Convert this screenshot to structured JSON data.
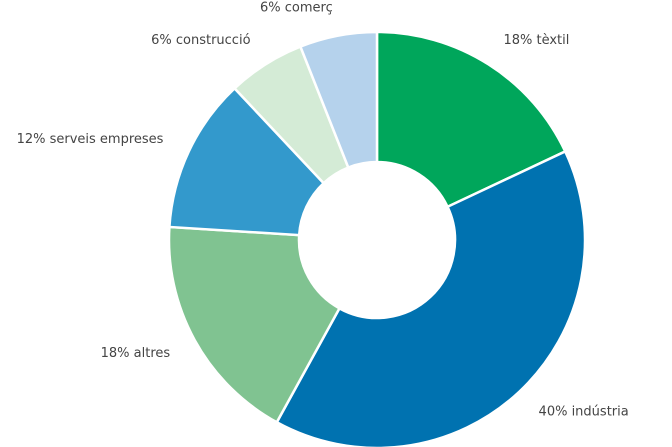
{
  "chart_data": {
    "type": "donut",
    "values": [
      18,
      40,
      18,
      12,
      6,
      6
    ],
    "value_labels": [
      "18% tèxtil",
      "40% indústria",
      "18% altres",
      "12% serveis empreses",
      "6% construcció",
      "6% comerç"
    ],
    "colors": [
      "#00a65b",
      "#0072b0",
      "#80c391",
      "#3399cc",
      "#d4ebd6",
      "#b5d2ec"
    ]
  }
}
